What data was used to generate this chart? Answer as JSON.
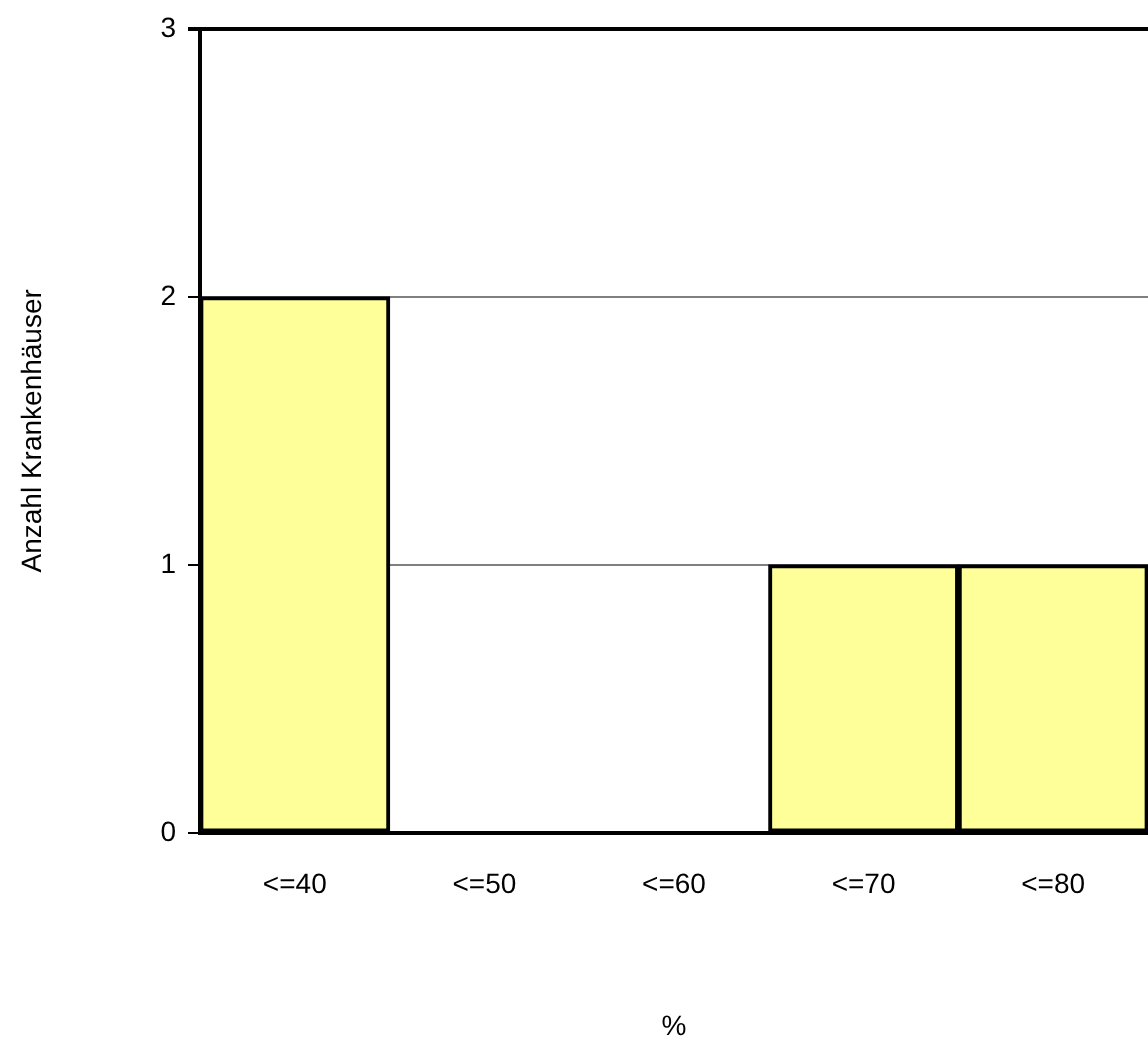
{
  "chart_data": {
    "type": "bar",
    "xlabel": "%",
    "ylabel": "Anzahl Krankenhäuser",
    "categories": [
      "<=40",
      "<=50",
      "<=60",
      "<=70",
      "<=80"
    ],
    "values": [
      2,
      0,
      0,
      1,
      1
    ],
    "color": "#ffff99",
    "ylim": [
      0,
      3
    ],
    "yticks": [
      0,
      1,
      2,
      3
    ],
    "grid": "y",
    "legend": false
  }
}
